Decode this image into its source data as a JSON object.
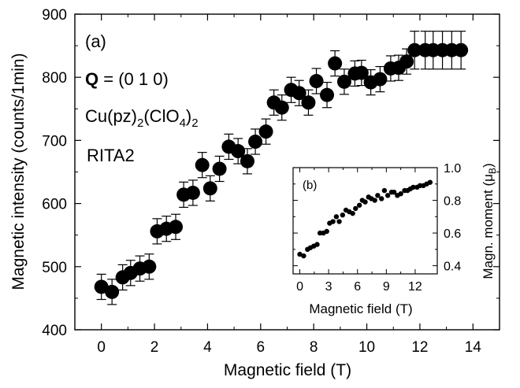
{
  "chart_data": [
    {
      "type": "scatter",
      "panel_label": "(a)",
      "xlabel": "Magnetic field (T)",
      "ylabel": "Magnetic intensity (counts/1min)",
      "xlim": [
        -1,
        15
      ],
      "ylim": [
        400,
        900
      ],
      "xticks": [
        0,
        2,
        4,
        6,
        8,
        10,
        12,
        14
      ],
      "yticks": [
        400,
        500,
        600,
        700,
        800,
        900
      ],
      "annotations": {
        "q_bold": "Q",
        "q_rest": " = (0 1 0)",
        "formula": [
          "Cu(pz)",
          "2",
          "(ClO",
          "4",
          ")",
          "2"
        ],
        "instrument": "RITA2"
      },
      "series": [
        {
          "name": "Magnetic intensity",
          "x": [
            0.0,
            0.4,
            0.8,
            1.1,
            1.45,
            1.8,
            2.1,
            2.45,
            2.8,
            3.1,
            3.45,
            3.8,
            4.1,
            4.45,
            4.8,
            5.15,
            5.5,
            5.8,
            6.2,
            6.5,
            6.8,
            7.15,
            7.45,
            7.8,
            8.1,
            8.5,
            8.8,
            9.15,
            9.55,
            9.8,
            10.15,
            10.5,
            10.9,
            11.2,
            11.5,
            11.8,
            12.2,
            12.5,
            12.85,
            13.2,
            13.55
          ],
          "y": [
            468,
            460,
            483,
            490,
            497,
            500,
            556,
            560,
            563,
            614,
            617,
            661,
            624,
            655,
            690,
            683,
            667,
            698,
            714,
            760,
            752,
            780,
            775,
            760,
            794,
            772,
            822,
            793,
            806,
            807,
            792,
            797,
            814,
            815,
            825,
            843,
            843,
            843,
            843,
            843,
            843
          ],
          "yerr": [
            20,
            20,
            20,
            20,
            20,
            20,
            20,
            20,
            20,
            20,
            20,
            20,
            20,
            20,
            20,
            20,
            20,
            20,
            20,
            20,
            20,
            20,
            20,
            20,
            20,
            20,
            20,
            20,
            20,
            20,
            20,
            20,
            20,
            20,
            20,
            30,
            30,
            30,
            30,
            30,
            30
          ]
        }
      ]
    },
    {
      "type": "scatter",
      "panel_label": "(b)",
      "xlabel": "Magnetic field (T)",
      "ylabel": "Magn. moment (μ",
      "ylabel_sub": "B",
      "ylabel_end": ")",
      "xlim": [
        -0.7,
        14.3
      ],
      "ylim": [
        0.35,
        1.0
      ],
      "xticks": [
        0,
        3,
        6,
        9,
        12
      ],
      "yticks": [
        0.4,
        0.6,
        0.8,
        1.0
      ],
      "ytick_labels": [
        "0.4",
        "0.6",
        "0.8",
        "1.0"
      ],
      "series": [
        {
          "name": "Magnetic moment",
          "x": [
            0.0,
            0.4,
            0.8,
            1.1,
            1.45,
            1.8,
            2.1,
            2.45,
            2.8,
            3.1,
            3.45,
            3.8,
            4.1,
            4.45,
            4.8,
            5.15,
            5.5,
            5.8,
            6.2,
            6.5,
            6.8,
            7.15,
            7.45,
            7.8,
            8.1,
            8.5,
            8.8,
            9.15,
            9.55,
            9.8,
            10.15,
            10.5,
            10.9,
            11.2,
            11.5,
            11.8,
            12.2,
            12.5,
            12.85,
            13.2,
            13.55
          ],
          "y": [
            0.47,
            0.46,
            0.5,
            0.51,
            0.52,
            0.53,
            0.6,
            0.6,
            0.61,
            0.66,
            0.67,
            0.7,
            0.67,
            0.71,
            0.74,
            0.73,
            0.72,
            0.75,
            0.77,
            0.8,
            0.79,
            0.82,
            0.81,
            0.8,
            0.83,
            0.81,
            0.86,
            0.83,
            0.85,
            0.85,
            0.83,
            0.84,
            0.86,
            0.86,
            0.87,
            0.88,
            0.88,
            0.89,
            0.89,
            0.9,
            0.91
          ]
        }
      ]
    }
  ]
}
